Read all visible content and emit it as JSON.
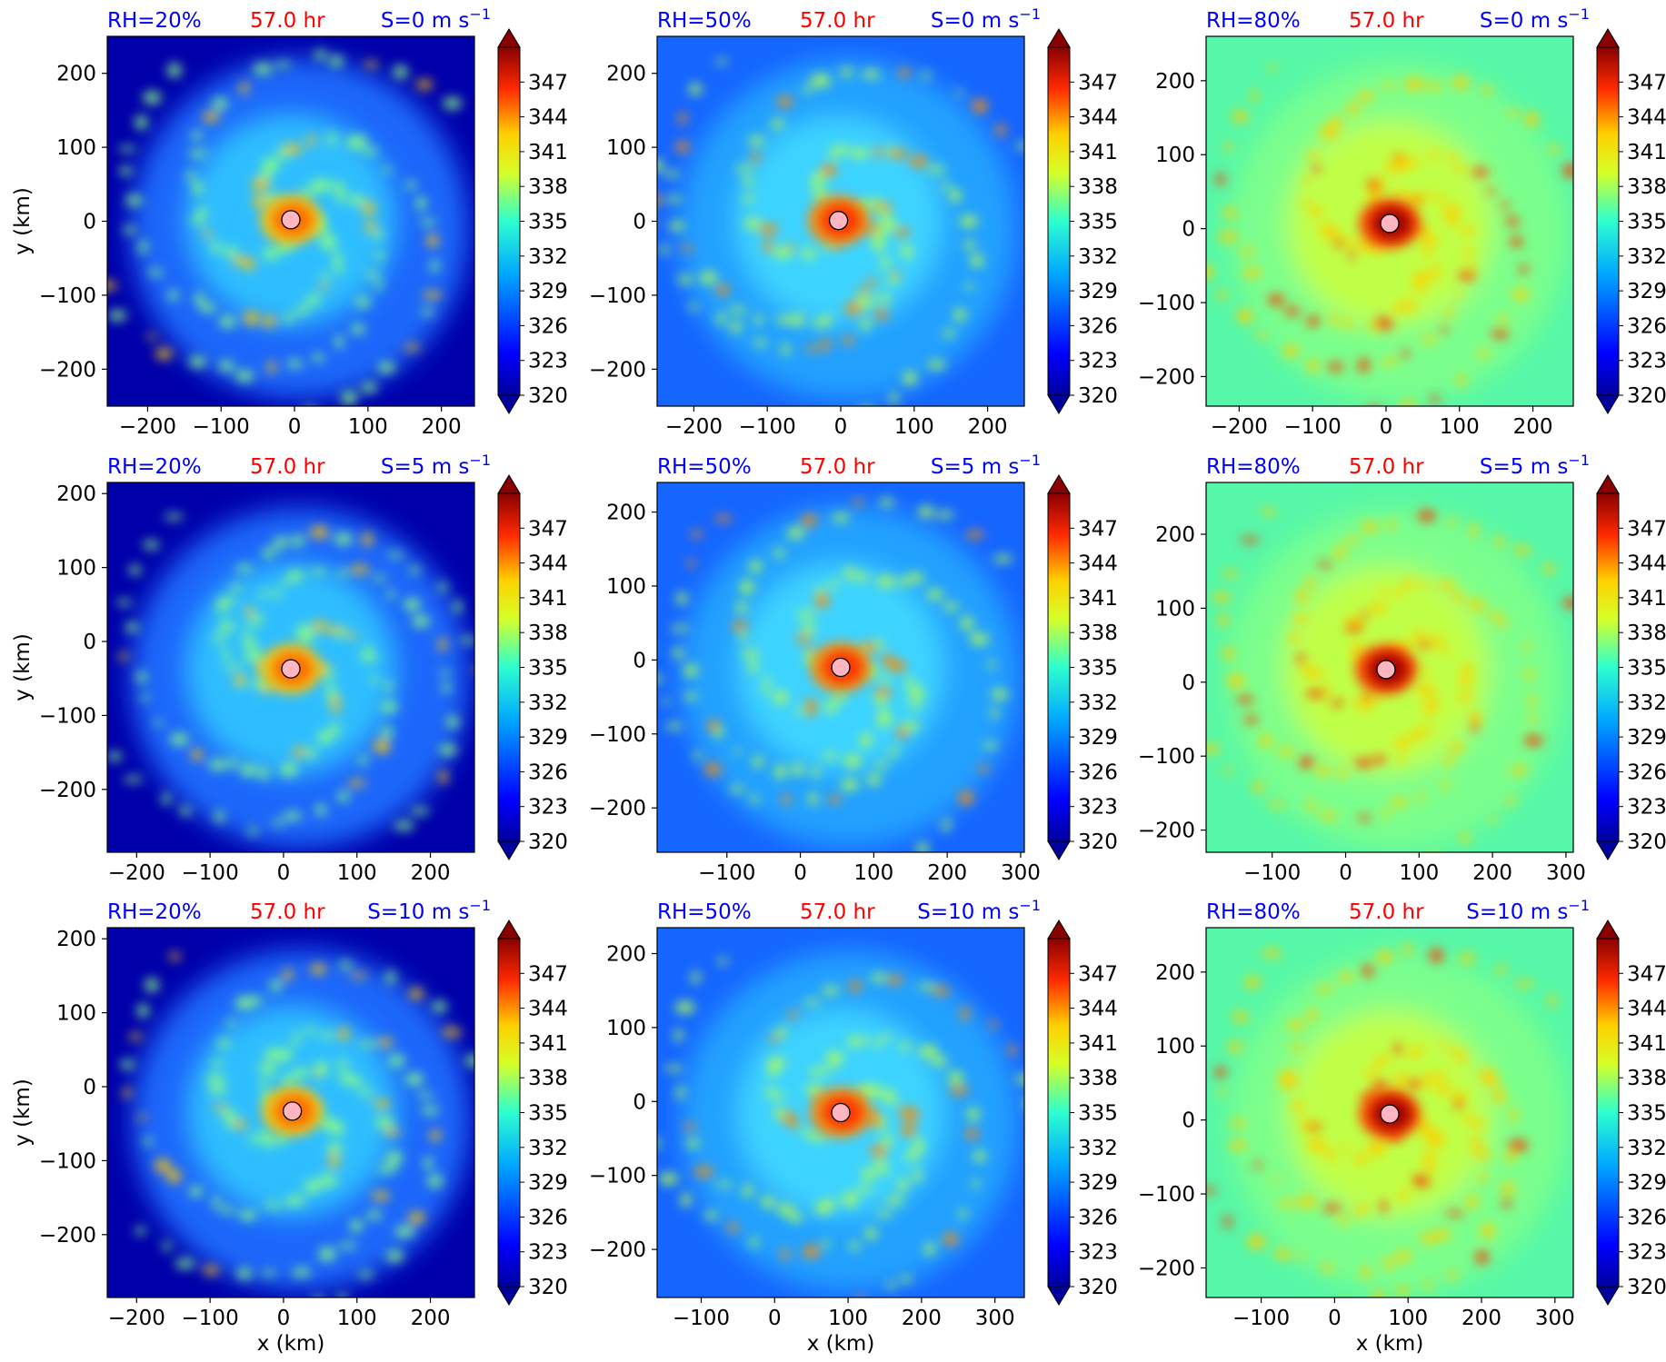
{
  "figure": {
    "colorbar": {
      "ticks": [
        320,
        323,
        326,
        329,
        332,
        335,
        338,
        341,
        344,
        347
      ],
      "vmin": 320,
      "vmax": 350,
      "extend": "both",
      "colormap": "jet"
    },
    "xlabel": "x (km)",
    "ylabel": "y (km)",
    "time_label": "57.0 hr",
    "colors": {
      "label_blue": "#0000ff",
      "time_red": "#ff0000",
      "center_marker": "#ffb6c1",
      "outer_high_rh": "#56f7a8",
      "outer_mid_rh": "#1f6dff",
      "outer_low_rh": "#00009c"
    }
  },
  "panels": [
    {
      "rh": "RH=20%",
      "time": "57.0 hr",
      "shear": "S=0 m s",
      "sup": "−1",
      "xticks": [
        "−200",
        "−100",
        "0",
        "100",
        "200"
      ],
      "yticks": [
        "200",
        "100",
        "0",
        "−100",
        "−200"
      ],
      "show_ylabel": true,
      "show_xlabel": false
    },
    {
      "rh": "RH=50%",
      "time": "57.0 hr",
      "shear": "S=0 m s",
      "sup": "−1",
      "xticks": [
        "−200",
        "−100",
        "0",
        "100",
        "200"
      ],
      "yticks": [
        "200",
        "100",
        "0",
        "−100",
        "−200"
      ],
      "show_ylabel": false,
      "show_xlabel": false
    },
    {
      "rh": "RH=80%",
      "time": "57.0 hr",
      "shear": "S=0 m s",
      "sup": "−1",
      "xticks": [
        "−200",
        "−100",
        "0",
        "100",
        "200"
      ],
      "yticks": [
        "200",
        "100",
        "0",
        "−100",
        "−200"
      ],
      "show_ylabel": false,
      "show_xlabel": false
    },
    {
      "rh": "RH=20%",
      "time": "57.0 hr",
      "shear": "S=5 m s",
      "sup": "−1",
      "xticks": [
        "−200",
        "−100",
        "0",
        "100",
        "200"
      ],
      "yticks": [
        "200",
        "100",
        "0",
        "−100",
        "−200"
      ],
      "show_ylabel": true,
      "show_xlabel": false
    },
    {
      "rh": "RH=50%",
      "time": "57.0 hr",
      "shear": "S=5 m s",
      "sup": "−1",
      "xticks": [
        "−100",
        "0",
        "100",
        "200",
        "300"
      ],
      "yticks": [
        "200",
        "100",
        "0",
        "−100",
        "−200"
      ],
      "show_ylabel": false,
      "show_xlabel": false
    },
    {
      "rh": "RH=80%",
      "time": "57.0 hr",
      "shear": "S=5 m s",
      "sup": "−1",
      "xticks": [
        "−100",
        "0",
        "100",
        "200",
        "300"
      ],
      "yticks": [
        "200",
        "100",
        "0",
        "−100",
        "−200"
      ],
      "show_ylabel": false,
      "show_xlabel": false
    },
    {
      "rh": "RH=20%",
      "time": "57.0 hr",
      "shear": "S=10 m s",
      "sup": "−1",
      "xticks": [
        "−200",
        "−100",
        "0",
        "100",
        "200"
      ],
      "yticks": [
        "200",
        "100",
        "0",
        "−100",
        "−200"
      ],
      "show_ylabel": true,
      "show_xlabel": true
    },
    {
      "rh": "RH=50%",
      "time": "57.0 hr",
      "shear": "S=10 m s",
      "sup": "−1",
      "xticks": [
        "−100",
        "0",
        "100",
        "200",
        "300"
      ],
      "yticks": [
        "200",
        "100",
        "0",
        "−100",
        "−200"
      ],
      "show_ylabel": false,
      "show_xlabel": true
    },
    {
      "rh": "RH=80%",
      "time": "57.0 hr",
      "shear": "S=10 m s",
      "sup": "−1",
      "xticks": [
        "−100",
        "0",
        "100",
        "200",
        "300"
      ],
      "yticks": [
        "200",
        "100",
        "0",
        "−100",
        "−200"
      ],
      "show_ylabel": false,
      "show_xlabel": true
    }
  ],
  "chart_data": [
    {
      "type": "heatmap",
      "rh": "RH=20%",
      "shear": "S=0 m s−1",
      "time": "57.0 hr",
      "xlim": [
        -255,
        245
      ],
      "ylim": [
        -250,
        250
      ],
      "center_km": [
        -5,
        2
      ],
      "field_range": [
        320,
        350
      ],
      "colorbar_ticks": [
        320,
        323,
        326,
        329,
        332,
        335,
        338,
        341,
        344,
        347
      ]
    },
    {
      "type": "heatmap",
      "rh": "RH=50%",
      "shear": "S=0 m s−1",
      "time": "57.0 hr",
      "xlim": [
        -250,
        250
      ],
      "ylim": [
        -250,
        250
      ],
      "center_km": [
        -3,
        1
      ],
      "field_range": [
        320,
        350
      ],
      "colorbar_ticks": [
        320,
        323,
        326,
        329,
        332,
        335,
        338,
        341,
        344,
        347
      ]
    },
    {
      "type": "heatmap",
      "rh": "RH=80%",
      "shear": "S=0 m s−1",
      "time": "57.0 hr",
      "xlim": [
        -245,
        255
      ],
      "ylim": [
        -240,
        260
      ],
      "center_km": [
        5,
        7
      ],
      "field_range": [
        320,
        350
      ],
      "colorbar_ticks": [
        320,
        323,
        326,
        329,
        332,
        335,
        338,
        341,
        344,
        347
      ]
    },
    {
      "type": "heatmap",
      "rh": "RH=20%",
      "shear": "S=5 m s−1",
      "time": "57.0 hr",
      "xlim": [
        -240,
        260
      ],
      "ylim": [
        -285,
        215
      ],
      "center_km": [
        10,
        -37
      ],
      "field_range": [
        320,
        350
      ],
      "colorbar_ticks": [
        320,
        323,
        326,
        329,
        332,
        335,
        338,
        341,
        344,
        347
      ]
    },
    {
      "type": "heatmap",
      "rh": "RH=50%",
      "shear": "S=5 m s−1",
      "time": "57.0 hr",
      "xlim": [
        -195,
        305
      ],
      "ylim": [
        -260,
        240
      ],
      "center_km": [
        55,
        -10
      ],
      "field_range": [
        320,
        350
      ],
      "colorbar_ticks": [
        320,
        323,
        326,
        329,
        332,
        335,
        338,
        341,
        344,
        347
      ]
    },
    {
      "type": "heatmap",
      "rh": "RH=80%",
      "shear": "S=5 m s−1",
      "time": "57.0 hr",
      "xlim": [
        -190,
        310
      ],
      "ylim": [
        -230,
        270
      ],
      "center_km": [
        55,
        17
      ],
      "field_range": [
        320,
        350
      ],
      "colorbar_ticks": [
        320,
        323,
        326,
        329,
        332,
        335,
        338,
        341,
        344,
        347
      ]
    },
    {
      "type": "heatmap",
      "rh": "RH=20%",
      "shear": "S=10 m s−1",
      "time": "57.0 hr",
      "xlim": [
        -240,
        260
      ],
      "ylim": [
        -285,
        215
      ],
      "center_km": [
        12,
        -33
      ],
      "field_range": [
        320,
        350
      ],
      "colorbar_ticks": [
        320,
        323,
        326,
        329,
        332,
        335,
        338,
        341,
        344,
        347
      ]
    },
    {
      "type": "heatmap",
      "rh": "RH=50%",
      "shear": "S=10 m s−1",
      "time": "57.0 hr",
      "xlim": [
        -160,
        340
      ],
      "ylim": [
        -265,
        235
      ],
      "center_km": [
        90,
        -15
      ],
      "field_range": [
        320,
        350
      ],
      "colorbar_ticks": [
        320,
        323,
        326,
        329,
        332,
        335,
        338,
        341,
        344,
        347
      ]
    },
    {
      "type": "heatmap",
      "rh": "RH=80%",
      "shear": "S=10 m s−1",
      "time": "57.0 hr",
      "xlim": [
        -175,
        325
      ],
      "ylim": [
        -240,
        260
      ],
      "center_km": [
        75,
        8
      ],
      "field_range": [
        320,
        350
      ],
      "colorbar_ticks": [
        320,
        323,
        326,
        329,
        332,
        335,
        338,
        341,
        344,
        347
      ]
    }
  ]
}
